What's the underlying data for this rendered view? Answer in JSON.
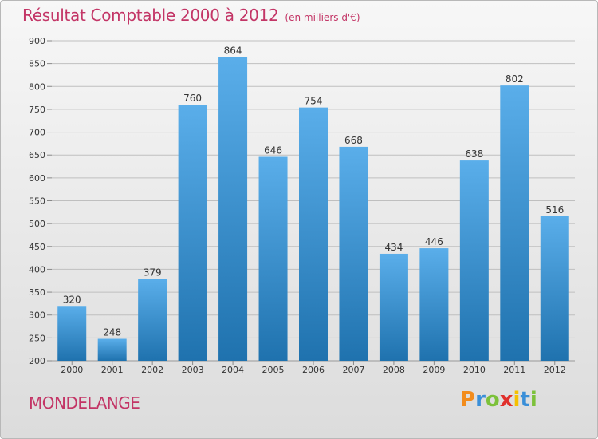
{
  "title": "Résultat Comptable 2000 à 2012",
  "subtitle": "(en milliers d'€)",
  "commune": "MONDELANGE",
  "logo": {
    "letters": [
      "P",
      "r",
      "o",
      "x",
      "i",
      "t",
      "i"
    ],
    "colors": [
      "#f28c1c",
      "#3a8fd8",
      "#7cc13a",
      "#e0302c",
      "#f5c000",
      "#3a8fd8",
      "#7cc13a"
    ]
  },
  "colors": {
    "title": "#c33566",
    "bar_top": "#5aaeea",
    "bar_bottom": "#1f72ae",
    "grid": "#bfbfbf",
    "axis_text": "#333333"
  },
  "chart_data": {
    "type": "bar",
    "categories": [
      "2000",
      "2001",
      "2002",
      "2003",
      "2004",
      "2005",
      "2006",
      "2007",
      "2008",
      "2009",
      "2010",
      "2011",
      "2012"
    ],
    "values": [
      320,
      248,
      379,
      760,
      864,
      646,
      754,
      668,
      434,
      446,
      638,
      802,
      516
    ],
    "labels": [
      "320",
      "248",
      "379",
      "760",
      "864",
      "646",
      "754",
      "668",
      "434",
      "446",
      "638",
      "802",
      "516"
    ],
    "yticks": [
      200,
      250,
      300,
      350,
      400,
      450,
      500,
      550,
      600,
      650,
      700,
      750,
      800,
      850,
      900
    ],
    "ylim": [
      200,
      900
    ],
    "title": "Résultat Comptable 2000 à 2012",
    "xlabel": "",
    "ylabel": "",
    "grid": true
  }
}
